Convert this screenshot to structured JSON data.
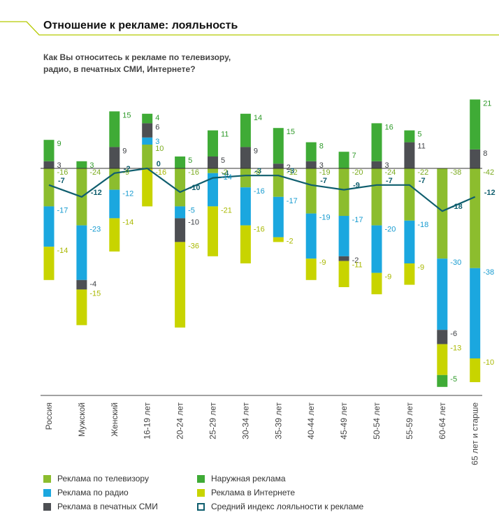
{
  "header": {
    "title": "Отношение к рекламе: лояльность",
    "subtitle_line1": "Как Вы относитесь к рекламе по телевизору,",
    "subtitle_line2": "радио, в печатных СМИ, Интернете?"
  },
  "colors": {
    "tv": "#8cbd2e",
    "outdoor": "#3fab36",
    "radio": "#1ba7df",
    "print": "#4d4f53",
    "internet": "#c8d400",
    "average_line": "#0f5e6e",
    "accent": "#b5c900"
  },
  "legend": {
    "tv": "Реклама по телевизору",
    "outdoor": "Наружная реклама",
    "radio": "Реклама по радио",
    "internet": "Реклама в Интернете",
    "print": "Реклама в печатных СМИ",
    "average": "Средний индекс лояльности к рекламе"
  },
  "chart_data": {
    "type": "bar",
    "stacked": true,
    "categories": [
      "Россия",
      "Мужской",
      "Женский",
      "16-19 лет",
      "20-24 лет",
      "25-29 лет",
      "30-34 лет",
      "35-39 лет",
      "40-44 лет",
      "45-49 лет",
      "50-54 лет",
      "55-59 лет",
      "60-64 лет",
      "65 лет и старше"
    ],
    "series": [
      {
        "name": "Реклама по телевизору",
        "key": "tv",
        "values": [
          -16,
          -24,
          -9,
          10,
          -16,
          -2,
          -8,
          -12,
          -19,
          -20,
          -24,
          -22,
          -38,
          -42
        ]
      },
      {
        "name": "Наружная реклама",
        "key": "outdoor",
        "values": [
          9,
          3,
          15,
          4,
          5,
          11,
          14,
          15,
          8,
          7,
          16,
          5,
          -5,
          21
        ]
      },
      {
        "name": "Реклама по радио",
        "key": "radio",
        "values": [
          -17,
          -23,
          -12,
          3,
          -5,
          -14,
          -16,
          -17,
          -19,
          -17,
          -20,
          -18,
          -30,
          -38
        ]
      },
      {
        "name": "Реклама в печатных СМИ",
        "key": "print",
        "values": [
          3,
          -4,
          9,
          6,
          -10,
          5,
          9,
          2,
          3,
          -2,
          3,
          11,
          -6,
          8
        ]
      },
      {
        "name": "Реклама в Интернете",
        "key": "internet",
        "values": [
          -14,
          -15,
          -14,
          -16,
          -36,
          -21,
          -16,
          -2,
          -9,
          -11,
          -9,
          -9,
          -13,
          -10
        ]
      },
      {
        "name": "Средний индекс лояльности к рекламе",
        "key": "average",
        "type": "line",
        "values": [
          -7,
          -12,
          -2,
          0,
          -10,
          -4,
          -3,
          -3,
          -7,
          -9,
          -7,
          -7,
          -18,
          -12
        ]
      }
    ],
    "value_labels": {
      "tv": [
        "-16",
        "-24",
        "-9",
        "10",
        "-16",
        "-2",
        "-8",
        "-12",
        "-19",
        "-20",
        "-24",
        "-22",
        "-38",
        "-42"
      ],
      "outdoor": [
        "9",
        "3",
        "15",
        "4",
        "5",
        "11",
        "14",
        "15",
        "8",
        "7",
        "16",
        "5",
        "-5",
        "21"
      ],
      "radio": [
        "-17",
        "-23",
        "-12",
        "3",
        "-5",
        "-14",
        "-16",
        "-17",
        "-19",
        "-17",
        "-20",
        "-18",
        "-30",
        "-38"
      ],
      "print": [
        "3",
        "-4",
        "9",
        "6",
        "-10",
        "5",
        "9",
        "2",
        "3",
        "-2",
        "3",
        "11",
        "-6",
        "8"
      ],
      "internet": [
        "-14",
        "-15",
        "-14",
        "-16",
        "-36",
        "-21",
        "-16",
        "-2",
        "-9",
        "-11",
        "-9",
        "-9",
        "-13",
        "-10"
      ],
      "average": [
        "-7",
        "-12",
        "-2",
        "0",
        "-10",
        "-4",
        "-3",
        "-3",
        "-7",
        "-9",
        "-7",
        "-7",
        "-18",
        "-12"
      ]
    },
    "grid": false,
    "legend_position": "bottom"
  }
}
